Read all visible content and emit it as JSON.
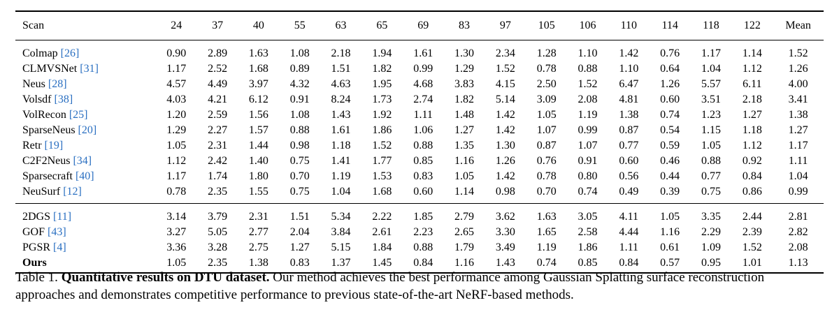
{
  "table": {
    "columns": [
      "Scan",
      "24",
      "37",
      "40",
      "55",
      "63",
      "65",
      "69",
      "83",
      "97",
      "105",
      "106",
      "110",
      "114",
      "118",
      "122",
      "Mean"
    ],
    "groups": [
      [
        {
          "method": "Colmap ",
          "ref": "[26]",
          "values": [
            "0.90",
            "2.89",
            "1.63",
            "1.08",
            "2.18",
            "1.94",
            "1.61",
            "1.30",
            "2.34",
            "1.28",
            "1.10",
            "1.42",
            "0.76",
            "1.17",
            "1.14",
            "1.52"
          ],
          "bold": []
        },
        {
          "method": "CLMVSNet ",
          "ref": "[31]",
          "values": [
            "1.17",
            "2.52",
            "1.68",
            "0.89",
            "1.51",
            "1.82",
            "0.99",
            "1.29",
            "1.52",
            "0.78",
            "0.88",
            "1.10",
            "0.64",
            "1.04",
            "1.12",
            "1.26"
          ],
          "bold": []
        },
        {
          "method": "Neus ",
          "ref": "[28]",
          "values": [
            "4.57",
            "4.49",
            "3.97",
            "4.32",
            "4.63",
            "1.95",
            "4.68",
            "3.83",
            "4.15",
            "2.50",
            "1.52",
            "6.47",
            "1.26",
            "5.57",
            "6.11",
            "4.00"
          ],
          "bold": []
        },
        {
          "method": "Volsdf ",
          "ref": "[38]",
          "values": [
            "4.03",
            "4.21",
            "6.12",
            "0.91",
            "8.24",
            "1.73",
            "2.74",
            "1.82",
            "5.14",
            "3.09",
            "2.08",
            "4.81",
            "0.60",
            "3.51",
            "2.18",
            "3.41"
          ],
          "bold": []
        },
        {
          "method": "VolRecon ",
          "ref": "[25]",
          "values": [
            "1.20",
            "2.59",
            "1.56",
            "1.08",
            "1.43",
            "1.92",
            "1.11",
            "1.48",
            "1.42",
            "1.05",
            "1.19",
            "1.38",
            "0.74",
            "1.23",
            "1.27",
            "1.38"
          ],
          "bold": []
        },
        {
          "method": "SparseNeus ",
          "ref": "[20]",
          "values": [
            "1.29",
            "2.27",
            "1.57",
            "0.88",
            "1.61",
            "1.86",
            "1.06",
            "1.27",
            "1.42",
            "1.07",
            "0.99",
            "0.87",
            "0.54",
            "1.15",
            "1.18",
            "1.27"
          ],
          "bold": []
        },
        {
          "method": "Retr ",
          "ref": "[19]",
          "values": [
            "1.05",
            "2.31",
            "1.44",
            "0.98",
            "1.18",
            "1.52",
            "0.88",
            "1.35",
            "1.30",
            "0.87",
            "1.07",
            "0.77",
            "0.59",
            "1.05",
            "1.12",
            "1.17"
          ],
          "bold": [
            5
          ]
        },
        {
          "method": "C2F2Neus ",
          "ref": "[34]",
          "values": [
            "1.12",
            "2.42",
            "1.40",
            "0.75",
            "1.41",
            "1.77",
            "0.85",
            "1.16",
            "1.26",
            "0.76",
            "0.91",
            "0.60",
            "0.46",
            "0.88",
            "0.92",
            "1.11"
          ],
          "bold": [
            2
          ]
        },
        {
          "method": "Sparsecraft ",
          "ref": "[40]",
          "values": [
            "1.17",
            "1.74",
            "1.80",
            "0.70",
            "1.19",
            "1.53",
            "0.83",
            "1.05",
            "1.42",
            "0.78",
            "0.80",
            "0.56",
            "0.44",
            "0.77",
            "0.84",
            "1.04"
          ],
          "bold": [
            1,
            3,
            7,
            14
          ]
        },
        {
          "method": "NeuSurf ",
          "ref": "[12]",
          "values": [
            "0.78",
            "2.35",
            "1.55",
            "0.75",
            "1.04",
            "1.68",
            "0.60",
            "1.14",
            "0.98",
            "0.70",
            "0.74",
            "0.49",
            "0.39",
            "0.75",
            "0.86",
            "0.99"
          ],
          "bold": [
            0,
            4,
            6,
            8,
            9,
            10,
            11,
            12,
            13,
            15
          ]
        }
      ],
      [
        {
          "method": "2DGS ",
          "ref": "[11]",
          "values": [
            "3.14",
            "3.79",
            "2.31",
            "1.51",
            "5.34",
            "2.22",
            "1.85",
            "2.79",
            "3.62",
            "1.63",
            "3.05",
            "4.11",
            "1.05",
            "3.35",
            "2.44",
            "2.81"
          ],
          "bold": []
        },
        {
          "method": "GOF ",
          "ref": "[43]",
          "values": [
            "3.27",
            "5.05",
            "2.77",
            "2.04",
            "3.84",
            "2.61",
            "2.23",
            "2.65",
            "3.30",
            "1.65",
            "2.58",
            "4.44",
            "1.16",
            "2.29",
            "2.39",
            "2.82"
          ],
          "bold": []
        },
        {
          "method": "PGSR ",
          "ref": "[4]",
          "values": [
            "3.36",
            "3.28",
            "2.75",
            "1.27",
            "5.15",
            "1.84",
            "0.88",
            "1.79",
            "3.49",
            "1.19",
            "1.86",
            "1.11",
            "0.61",
            "1.09",
            "1.52",
            "2.08"
          ],
          "bold": []
        },
        {
          "method": "Ours",
          "ref": "",
          "values": [
            "1.05",
            "2.35",
            "1.38",
            "0.83",
            "1.37",
            "1.45",
            "0.84",
            "1.16",
            "1.43",
            "0.74",
            "0.85",
            "0.84",
            "0.57",
            "0.95",
            "1.01",
            "1.13"
          ],
          "bold": [
            0,
            1,
            2,
            3,
            4,
            5,
            6,
            7,
            8,
            9,
            10,
            11,
            12,
            13,
            14,
            15
          ],
          "method_bold": true
        }
      ]
    ]
  },
  "caption": {
    "label": "Table 1. ",
    "bold_text": "Quantitative results on DTU dataset.",
    "text": " Our method achieves the best performance among Gaussian Splatting surface reconstruction approaches and demonstrates competitive performance to previous state-of-the-art NeRF-based methods."
  }
}
